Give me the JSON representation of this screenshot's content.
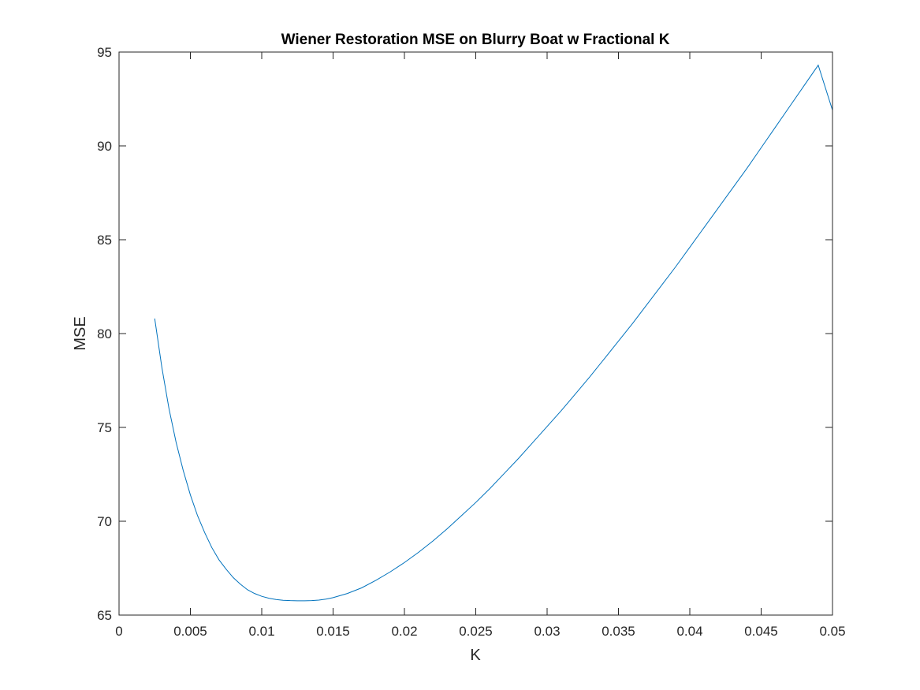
{
  "chart_data": {
    "type": "line",
    "title": "Wiener Restoration MSE on Blurry Boat w Fractional K",
    "xlabel": "K",
    "ylabel": "MSE",
    "xlim": [
      0,
      0.05
    ],
    "ylim": [
      65,
      95
    ],
    "xticks": [
      0,
      0.005,
      0.01,
      0.015,
      0.02,
      0.025,
      0.03,
      0.035,
      0.04,
      0.045,
      0.05
    ],
    "xtick_labels": [
      "0",
      "0.005",
      "0.01",
      "0.015",
      "0.02",
      "0.025",
      "0.03",
      "0.035",
      "0.04",
      "0.045",
      "0.05"
    ],
    "yticks": [
      65,
      70,
      75,
      80,
      85,
      90,
      95
    ],
    "ytick_labels": [
      "65",
      "70",
      "75",
      "80",
      "85",
      "90",
      "95"
    ],
    "grid": false,
    "line_color": "#0072BD",
    "series": [
      {
        "x": [
          0.0025,
          0.003,
          0.0035,
          0.004,
          0.0045,
          0.005,
          0.0055,
          0.006,
          0.0065,
          0.007,
          0.0075,
          0.008,
          0.0085,
          0.009,
          0.0095,
          0.01,
          0.0105,
          0.011,
          0.0115,
          0.012,
          0.0125,
          0.013,
          0.0135,
          0.014,
          0.0145,
          0.015,
          0.016,
          0.017,
          0.018,
          0.019,
          0.02,
          0.021,
          0.022,
          0.023,
          0.024,
          0.025,
          0.026,
          0.027,
          0.028,
          0.029,
          0.03,
          0.031,
          0.032,
          0.033,
          0.034,
          0.035,
          0.036,
          0.037,
          0.038,
          0.039,
          0.04,
          0.041,
          0.042,
          0.043,
          0.044,
          0.045,
          0.046,
          0.047,
          0.048,
          0.049,
          0.05
        ],
        "y": [
          80.8,
          78.2,
          76.0,
          74.2,
          72.7,
          71.4,
          70.3,
          69.4,
          68.6,
          67.95,
          67.45,
          67.0,
          66.65,
          66.35,
          66.15,
          66.0,
          65.9,
          65.83,
          65.79,
          65.77,
          65.76,
          65.76,
          65.77,
          65.8,
          65.85,
          65.93,
          66.15,
          66.45,
          66.85,
          67.3,
          67.8,
          68.35,
          68.95,
          69.6,
          70.3,
          71.0,
          71.75,
          72.55,
          73.35,
          74.2,
          75.05,
          75.9,
          76.8,
          77.7,
          78.65,
          79.6,
          80.55,
          81.55,
          82.55,
          83.55,
          84.6,
          85.65,
          86.7,
          87.75,
          88.8,
          89.9,
          91.0,
          92.1,
          93.2,
          94.3,
          91.9
        ]
      }
    ]
  }
}
